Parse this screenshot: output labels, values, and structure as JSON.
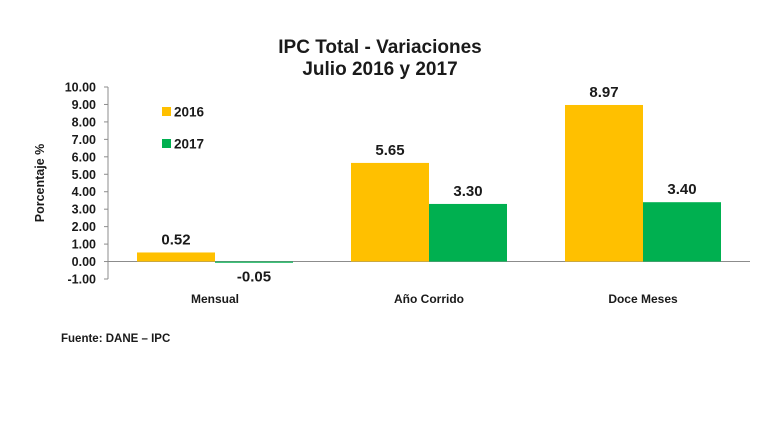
{
  "chart_data": {
    "type": "bar",
    "title": [
      "IPC Total - Variaciones",
      "Julio 2016 y 2017"
    ],
    "ylabel": "Porcentaje %",
    "xlabel": "",
    "ylim": [
      -1.0,
      10.0
    ],
    "ytick_step": 1.0,
    "ytick_labels": [
      "-1.00",
      "0.00",
      "1.00",
      "2.00",
      "3.00",
      "4.00",
      "5.00",
      "6.00",
      "7.00",
      "8.00",
      "9.00",
      "10.00"
    ],
    "categories": [
      "Mensual",
      "Año Corrido",
      "Doce Meses"
    ],
    "series": [
      {
        "name": "2016",
        "color": "#FFC000",
        "values": [
          0.52,
          5.65,
          8.97
        ],
        "value_labels": [
          "0.52",
          "5.65",
          "8.97"
        ]
      },
      {
        "name": "2017",
        "color": "#00B050",
        "values": [
          -0.05,
          3.3,
          3.4
        ],
        "value_labels": [
          "-0.05",
          "3.30",
          "3.40"
        ]
      }
    ],
    "legend_position": "top-left",
    "grid": false
  },
  "source_note": "Fuente: DANE – IPC"
}
